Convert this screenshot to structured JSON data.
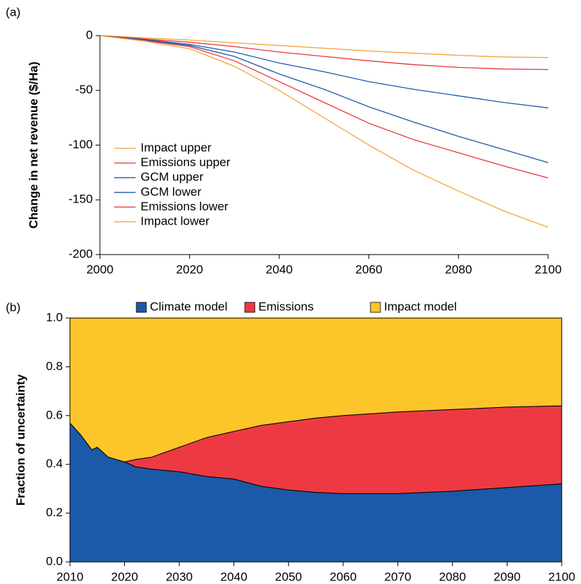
{
  "chart_data": [
    {
      "type": "line",
      "panel_label": "(a)",
      "y_label": "Change in net revenue ($/Ha)",
      "x": [
        2000,
        2010,
        2020,
        2030,
        2040,
        2050,
        2060,
        2070,
        2080,
        2090,
        2100
      ],
      "xlim": [
        2000,
        2100
      ],
      "xticks": [
        2000,
        2020,
        2040,
        2060,
        2080,
        2100
      ],
      "ylim": [
        -200,
        0
      ],
      "yticks": [
        -200,
        -150,
        -100,
        -50,
        0
      ],
      "grid": false,
      "legend_position": "lower left",
      "series": [
        {
          "name": "Impact upper",
          "color": "#f4a23c",
          "values": [
            0,
            -2,
            -4,
            -6.5,
            -9,
            -11.5,
            -14,
            -16,
            -18,
            -19.5,
            -20
          ]
        },
        {
          "name": "Emissions upper",
          "color": "#e8373f",
          "values": [
            0,
            -3,
            -6,
            -10,
            -15,
            -19,
            -23,
            -26.5,
            -29,
            -30.5,
            -31
          ]
        },
        {
          "name": "GCM upper",
          "color": "#1f5aa8",
          "values": [
            0,
            -3.5,
            -8,
            -15,
            -25,
            -33,
            -42,
            -49,
            -55,
            -61,
            -66
          ]
        },
        {
          "name": "GCM lower",
          "color": "#1f5aa8",
          "values": [
            0,
            -4,
            -9,
            -19,
            -35,
            -49,
            -65,
            -79,
            -92,
            -104,
            -116
          ]
        },
        {
          "name": "Emissions lower",
          "color": "#e8373f",
          "values": [
            0,
            -4.5,
            -10,
            -23,
            -42,
            -61,
            -80,
            -95,
            -107,
            -119,
            -130
          ]
        },
        {
          "name": "Impact lower",
          "color": "#f4a23c",
          "values": [
            0,
            -5,
            -12,
            -28,
            -50,
            -75,
            -100,
            -123,
            -142,
            -160,
            -175
          ]
        }
      ]
    },
    {
      "type": "area",
      "panel_label": "(b)",
      "y_label": "Fraction of uncertainty",
      "stacked": true,
      "x": [
        2010,
        2012,
        2014,
        2015,
        2017,
        2020,
        2022,
        2025,
        2030,
        2035,
        2040,
        2045,
        2050,
        2055,
        2060,
        2070,
        2080,
        2090,
        2100
      ],
      "xlim": [
        2010,
        2100
      ],
      "xticks": [
        2010,
        2020,
        2030,
        2040,
        2050,
        2060,
        2070,
        2080,
        2090,
        2100
      ],
      "ylim": [
        0,
        1
      ],
      "yticks": [
        {
          "value": 0,
          "label": "0.0"
        },
        {
          "value": 0.2,
          "label": "0.2"
        },
        {
          "value": 0.4,
          "label": "0.4"
        },
        {
          "value": 0.6,
          "label": "0.6"
        },
        {
          "value": 0.8,
          "label": "0.8"
        },
        {
          "value": 1,
          "label": "1.0"
        }
      ],
      "grid": false,
      "legend_position": "top",
      "series": [
        {
          "name": "Climate model",
          "color": "#1b5aa8",
          "values": [
            0.57,
            0.52,
            0.46,
            0.47,
            0.43,
            0.41,
            0.39,
            0.38,
            0.37,
            0.35,
            0.34,
            0.31,
            0.295,
            0.285,
            0.28,
            0.28,
            0.29,
            0.305,
            0.32
          ]
        },
        {
          "name": "Emissions",
          "color": "#ed3a42",
          "values": [
            0,
            0,
            0,
            0,
            0,
            0,
            0.03,
            0.05,
            0.1,
            0.16,
            0.195,
            0.25,
            0.28,
            0.305,
            0.32,
            0.335,
            0.335,
            0.33,
            0.32
          ]
        },
        {
          "name": "Impact model",
          "color": "#fcc52a",
          "values": [
            0.43,
            0.48,
            0.54,
            0.53,
            0.57,
            0.59,
            0.58,
            0.57,
            0.53,
            0.49,
            0.465,
            0.44,
            0.425,
            0.41,
            0.4,
            0.385,
            0.375,
            0.365,
            0.36
          ]
        }
      ]
    }
  ]
}
